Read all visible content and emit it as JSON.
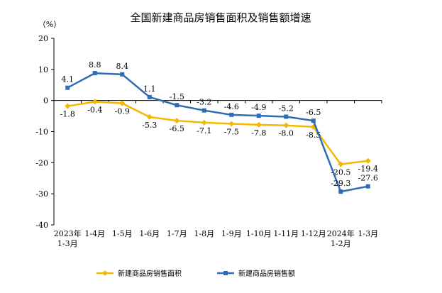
{
  "chart_data": {
    "type": "line",
    "title": "全国新建商品房销售面积及销售额增速",
    "ylabel": "（%）",
    "xlabel": "",
    "ylim": [
      -40,
      20
    ],
    "yticks": [
      20,
      10,
      0,
      -10,
      -20,
      -30,
      -40
    ],
    "categories": [
      [
        "2023年",
        "1-3月"
      ],
      [
        "1-4月"
      ],
      [
        "1-5月"
      ],
      [
        "1-6月"
      ],
      [
        "1-7月"
      ],
      [
        "1-8月"
      ],
      [
        "1-9月"
      ],
      [
        "1-10月"
      ],
      [
        "1-11月"
      ],
      [
        "1-12月"
      ],
      [
        "2024年",
        "1-2月"
      ],
      [
        "1-3月"
      ]
    ],
    "series": [
      {
        "name": "新建商品房销售面积",
        "color": "#f5b800",
        "marker": "diamond",
        "values": [
          -1.8,
          -0.4,
          -0.9,
          -5.3,
          -6.5,
          -7.1,
          -7.5,
          -7.8,
          -8.0,
          -8.5,
          -20.5,
          -19.4
        ],
        "labels": [
          "-1.8",
          "-0.4",
          "-0.9",
          "-5.3",
          "-6.5",
          "-7.1",
          "-7.5",
          "-7.8",
          "-8.0",
          "-8.5",
          "-20.5",
          "-19.4"
        ]
      },
      {
        "name": "新建商品房销售额",
        "color": "#2e6db5",
        "marker": "square",
        "values": [
          4.1,
          8.8,
          8.4,
          1.1,
          -1.5,
          -3.2,
          -4.6,
          -4.9,
          -5.2,
          -6.5,
          -29.3,
          -27.6
        ],
        "labels": [
          "4.1",
          "8.8",
          "8.4",
          "1.1",
          "-1.5",
          "-3.2",
          "-4.6",
          "-4.9",
          "-5.2",
          "-6.5",
          "-29.3",
          "-27.6"
        ]
      }
    ],
    "legend_position": "bottom",
    "grid": false
  }
}
